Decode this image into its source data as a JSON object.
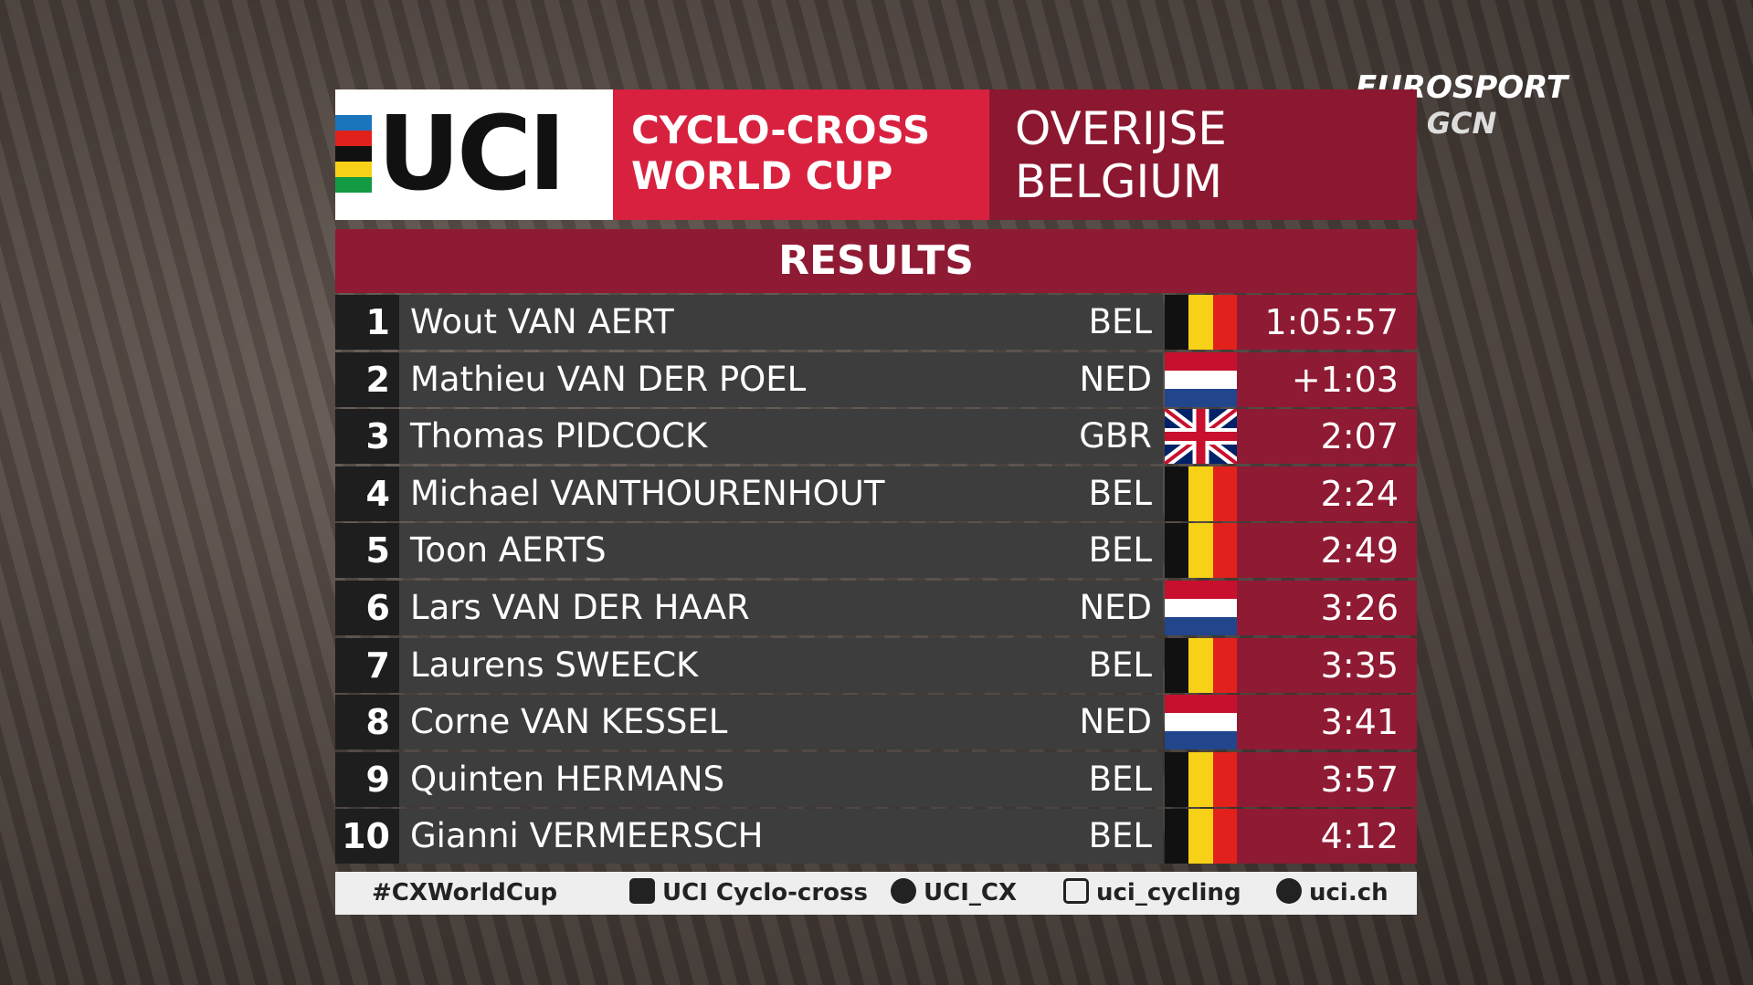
{
  "branding": {
    "broadcaster": "EUROSPORT",
    "channel": "GCN"
  },
  "header": {
    "logo": "UCI",
    "event_line1": "CYCLO-CROSS",
    "event_line2": "WORLD CUP",
    "location_line1": "OVERIJSE",
    "location_line2": "BELGIUM"
  },
  "results": {
    "title": "RESULTS",
    "rows": [
      [
        "1",
        "Wout VAN AERT",
        "BEL",
        "1:05:57"
      ],
      [
        "2",
        "Mathieu VAN DER POEL",
        "NED",
        "+1:03"
      ],
      [
        "3",
        "Thomas PIDCOCK",
        "GBR",
        "2:07"
      ],
      [
        "4",
        "Michael VANTHOURENHOUT",
        "BEL",
        "2:24"
      ],
      [
        "5",
        "Toon AERTS",
        "BEL",
        "2:49"
      ],
      [
        "6",
        "Lars VAN DER HAAR",
        "NED",
        "3:26"
      ],
      [
        "7",
        "Laurens SWEECK",
        "BEL",
        "3:35"
      ],
      [
        "8",
        "Corne VAN KESSEL",
        "NED",
        "3:41"
      ],
      [
        "9",
        "Quinten HERMANS",
        "BEL",
        "3:57"
      ],
      [
        "10",
        "Gianni VERMEERSCH",
        "BEL",
        "4:12"
      ]
    ]
  },
  "footer": {
    "hashtag": "#CXWorldCup",
    "facebook": "UCI Cyclo-cross",
    "twitter": "UCI_CX",
    "instagram": "uci_cycling",
    "website": "uci.ch"
  }
}
